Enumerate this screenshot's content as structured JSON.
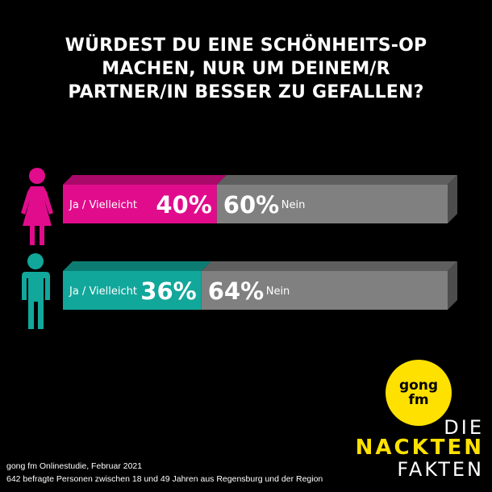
{
  "title_lines": [
    "WÜRDEST DU EINE SCHÖNHEITS-OP",
    "MACHEN, NUR UM DEINEM/R",
    "PARTNER/IN BESSER ZU GEFALLEN?"
  ],
  "colors": {
    "female": "#e10c8c",
    "male": "#12a79b",
    "no": "#808080",
    "no_side": "#4d4d4d",
    "no_top": "#5f5f5f"
  },
  "chart_data": {
    "type": "bar",
    "orientation": "horizontal",
    "stacked": true,
    "percent": true,
    "categories": [
      "female",
      "male"
    ],
    "series": [
      {
        "name": "Ja / Vielleicht",
        "values": [
          40,
          36
        ]
      },
      {
        "name": "Nein",
        "values": [
          60,
          64
        ]
      }
    ],
    "data_labels": [
      [
        "40%",
        "60%"
      ],
      [
        "36%",
        "64%"
      ]
    ],
    "xlim": [
      0,
      100
    ]
  },
  "logo": {
    "line1": "gong",
    "line2": "fm"
  },
  "brand": {
    "line1": "DIE",
    "line2": "NACKTEN",
    "line3": "FAKTEN"
  },
  "footer": {
    "line1": "gong fm Onlinestudie, Februar 2021",
    "line2": "642 befragte Personen zwischen 18 und 49 Jahren aus Regensburg und der Region"
  }
}
